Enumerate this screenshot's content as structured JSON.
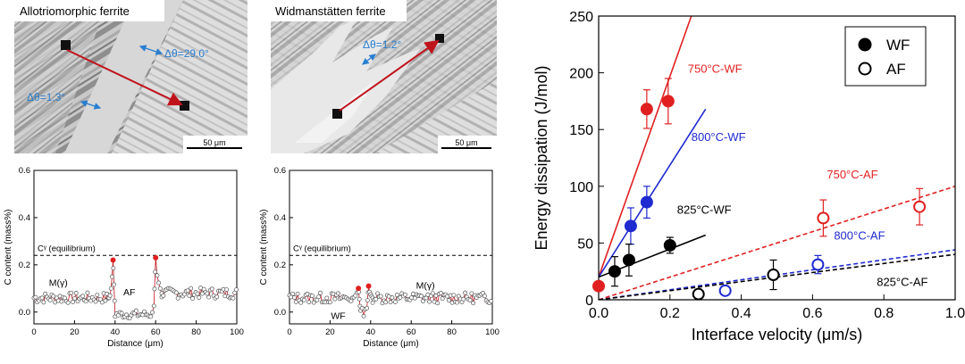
{
  "micrographs": [
    {
      "title": "Allotriomorphic ferrite",
      "scale_bar": "50 μm",
      "annotations": [
        "Δθ=29.0°",
        "Δθ=1.3°"
      ]
    },
    {
      "title": "Widmanstätten ferrite",
      "scale_bar": "50 μm",
      "annotations": [
        "Δθ=1.2°"
      ]
    }
  ],
  "colors": {
    "WF_750": "#e02020",
    "WF_800": "#1f2ad0",
    "WF_825": "#000000",
    "arrow": "#c0141c",
    "annotation": "#2a7fd0"
  },
  "chart_data": [
    {
      "type": "scatter",
      "ylabel": "C content (mass%)",
      "xlabel": "Distance (μm)",
      "xlim": [
        0,
        100
      ],
      "ylim": [
        -0.05,
        0.6
      ],
      "xticks": [
        0,
        20,
        40,
        60,
        80,
        100
      ],
      "yticks": [
        0.0,
        0.2,
        0.4,
        0.6
      ],
      "equilibrium_line": {
        "y": 0.24,
        "label": "Cᵞ (equilibrium)"
      },
      "annotations": [
        {
          "text": "M(γ)",
          "x": 12,
          "y": 0.11
        },
        {
          "text": "AF",
          "x": 47,
          "y": 0.07
        }
      ],
      "profile": {
        "baseline_left": {
          "x_range": [
            0,
            37
          ],
          "y": 0.06
        },
        "peak_left": {
          "x": 39,
          "y": 0.22
        },
        "interior": {
          "x_range": [
            40,
            59
          ],
          "y": -0.01
        },
        "peak_right": {
          "x": 60,
          "y": 0.23
        },
        "baseline_right": {
          "x_range": [
            63,
            100
          ],
          "y": 0.08
        }
      }
    },
    {
      "type": "scatter",
      "ylabel": "C content (mass%)",
      "xlabel": "Distance (μm)",
      "xlim": [
        0,
        100
      ],
      "ylim": [
        -0.05,
        0.6
      ],
      "xticks": [
        0,
        20,
        40,
        60,
        80,
        100
      ],
      "yticks": [
        0.0,
        0.2,
        0.4,
        0.6
      ],
      "equilibrium_line": {
        "y": 0.24,
        "label": "Cᵞ (equilibrium)"
      },
      "annotations": [
        {
          "text": "M(γ)",
          "x": 67,
          "y": 0.1
        },
        {
          "text": "WF",
          "x": 24,
          "y": -0.03
        }
      ],
      "profile": {
        "baseline_left": {
          "x_range": [
            0,
            31
          ],
          "y": 0.06
        },
        "peak_left": {
          "x": 34,
          "y": 0.1
        },
        "interior": {
          "x_range": [
            35,
            38
          ],
          "y": 0.0
        },
        "peak_right": {
          "x": 39,
          "y": 0.11
        },
        "baseline_right": {
          "x_range": [
            41,
            100
          ],
          "y": 0.06
        }
      }
    },
    {
      "type": "scatter",
      "xlabel": "Interface velocity (μm/s)",
      "ylabel": "Energy dissipation (J/mol)",
      "xlim": [
        0,
        1.0
      ],
      "ylim": [
        0,
        250
      ],
      "xticks": [
        0.0,
        0.2,
        0.4,
        0.6,
        0.8,
        1.0
      ],
      "yticks": [
        0,
        50,
        100,
        150,
        200,
        250
      ],
      "legend": {
        "position": "top-right",
        "entries": [
          {
            "label": "WF",
            "marker": "filled"
          },
          {
            "label": "AF",
            "marker": "open"
          }
        ]
      },
      "series": [
        {
          "label": "750°C-WF",
          "marker": "filled",
          "color": "#e02020",
          "points": [
            {
              "x": 0.0,
              "y": 12,
              "err": 0
            },
            {
              "x": 0.135,
              "y": 168,
              "err": 17
            },
            {
              "x": 0.195,
              "y": 175,
              "err": 20
            }
          ],
          "fit": {
            "style": "solid",
            "x": [
              0.0,
              0.26
            ],
            "y": [
              20,
              250
            ]
          },
          "label_pos": {
            "x": 0.25,
            "y": 200
          }
        },
        {
          "label": "800°C-WF",
          "marker": "filled",
          "color": "#1f2ad0",
          "points": [
            {
              "x": 0.09,
              "y": 65,
              "err": 16
            },
            {
              "x": 0.135,
              "y": 86,
              "err": 14
            }
          ],
          "fit": {
            "style": "solid",
            "x": [
              0.0,
              0.3
            ],
            "y": [
              20,
              168
            ]
          },
          "label_pos": {
            "x": 0.26,
            "y": 140
          }
        },
        {
          "label": "825°C-WF",
          "marker": "filled",
          "color": "#000000",
          "points": [
            {
              "x": 0.045,
              "y": 25,
              "err": 13
            },
            {
              "x": 0.085,
              "y": 35,
              "err": 14
            },
            {
              "x": 0.2,
              "y": 48,
              "err": 7
            }
          ],
          "fit": {
            "style": "solid",
            "x": [
              0.0,
              0.3
            ],
            "y": [
              20,
              57
            ]
          },
          "label_pos": {
            "x": 0.22,
            "y": 76
          }
        },
        {
          "label": "750°C-AF",
          "marker": "open",
          "color": "#e02020",
          "points": [
            {
              "x": 0.63,
              "y": 72,
              "err": 16
            },
            {
              "x": 0.9,
              "y": 82,
              "err": 16
            }
          ],
          "fit": {
            "style": "dashed",
            "x": [
              0.0,
              1.0
            ],
            "y": [
              0,
              100
            ]
          },
          "label_pos": {
            "x": 0.64,
            "y": 107
          }
        },
        {
          "label": "800°C-AF",
          "marker": "open",
          "color": "#1f2ad0",
          "points": [
            {
              "x": 0.355,
              "y": 8,
              "err": 0
            },
            {
              "x": 0.615,
              "y": 31,
              "err": 8
            }
          ],
          "fit": {
            "style": "dashed",
            "x": [
              0.0,
              1.0
            ],
            "y": [
              0,
              44
            ]
          },
          "label_pos": {
            "x": 0.66,
            "y": 53
          }
        },
        {
          "label": "825°C-AF",
          "marker": "open",
          "color": "#000000",
          "points": [
            {
              "x": 0.28,
              "y": 5,
              "err": 0
            },
            {
              "x": 0.49,
              "y": 22,
              "err": 13
            }
          ],
          "fit": {
            "style": "dashed",
            "x": [
              0.0,
              1.0
            ],
            "y": [
              0,
              40
            ]
          },
          "label_pos": {
            "x": 0.78,
            "y": 12
          }
        }
      ]
    }
  ]
}
